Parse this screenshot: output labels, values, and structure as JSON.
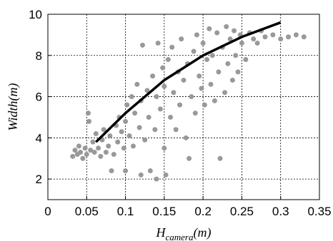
{
  "chart_data": {
    "type": "scatter",
    "x_label": {
      "base": "H",
      "sub": "camera",
      "unit": "(m)"
    },
    "y_label": "Width(m)",
    "xlim": [
      0,
      0.35
    ],
    "xticks": [
      0,
      0.05,
      0.1,
      0.15,
      0.2,
      0.25,
      0.3,
      0.35
    ],
    "ylim": [
      1,
      10
    ],
    "yticks": [
      2,
      4,
      6,
      8,
      10
    ],
    "grid": true,
    "series": [
      {
        "color": "#999999",
        "x": [
          0.032,
          0.035,
          0.038,
          0.04,
          0.042,
          0.045,
          0.048,
          0.05,
          0.052,
          0.053,
          0.055,
          0.058,
          0.06,
          0.062,
          0.065,
          0.068,
          0.07,
          0.072,
          0.075,
          0.078,
          0.08,
          0.082,
          0.085,
          0.088,
          0.09,
          0.092,
          0.095,
          0.098,
          0.1,
          0.1,
          0.102,
          0.105,
          0.108,
          0.11,
          0.112,
          0.115,
          0.118,
          0.12,
          0.12,
          0.122,
          0.125,
          0.128,
          0.13,
          0.132,
          0.135,
          0.138,
          0.14,
          0.14,
          0.142,
          0.145,
          0.148,
          0.15,
          0.15,
          0.152,
          0.155,
          0.158,
          0.16,
          0.162,
          0.165,
          0.168,
          0.17,
          0.172,
          0.175,
          0.178,
          0.18,
          0.182,
          0.185,
          0.188,
          0.19,
          0.192,
          0.195,
          0.198,
          0.2,
          0.202,
          0.205,
          0.208,
          0.21,
          0.212,
          0.215,
          0.218,
          0.22,
          0.222,
          0.225,
          0.228,
          0.23,
          0.232,
          0.235,
          0.238,
          0.24,
          0.242,
          0.245,
          0.248,
          0.25,
          0.255,
          0.26,
          0.265,
          0.27,
          0.275,
          0.28,
          0.29,
          0.3,
          0.31,
          0.32,
          0.33
        ],
        "values": [
          3.1,
          3.4,
          3.2,
          3.6,
          3.3,
          3.0,
          3.5,
          3.2,
          5.2,
          4.8,
          3.4,
          3.8,
          3.3,
          4.2,
          3.5,
          3.1,
          3.9,
          4.4,
          3.3,
          3.6,
          4.1,
          2.4,
          3.2,
          4.6,
          3.8,
          5.0,
          4.3,
          3.5,
          4.8,
          2.4,
          5.6,
          4.1,
          6.0,
          3.6,
          5.2,
          6.6,
          4.5,
          2.2,
          5.8,
          8.5,
          3.9,
          6.3,
          5.0,
          2.4,
          7.0,
          4.4,
          2.0,
          6.0,
          8.6,
          5.4,
          7.4,
          3.5,
          6.5,
          2.2,
          7.8,
          5.0,
          8.4,
          6.2,
          4.4,
          7.2,
          5.6,
          8.8,
          6.8,
          4.0,
          7.6,
          3.0,
          6.0,
          8.2,
          5.2,
          9.0,
          7.0,
          6.4,
          8.6,
          5.6,
          7.8,
          9.3,
          6.6,
          8.0,
          5.8,
          9.1,
          7.2,
          3.0,
          8.4,
          6.2,
          9.4,
          7.6,
          8.8,
          6.8,
          9.2,
          8.0,
          7.2,
          9.0,
          8.6,
          7.8,
          9.1,
          8.8,
          8.6,
          9.2,
          8.9,
          9.0,
          8.8,
          8.9,
          9.0,
          8.9
        ]
      },
      {
        "color": "#000000",
        "type": "line",
        "x": [
          0.062,
          0.1,
          0.15,
          0.2,
          0.25,
          0.3
        ],
        "values": [
          3.8,
          5.2,
          6.8,
          8.0,
          8.9,
          9.6
        ]
      }
    ]
  }
}
